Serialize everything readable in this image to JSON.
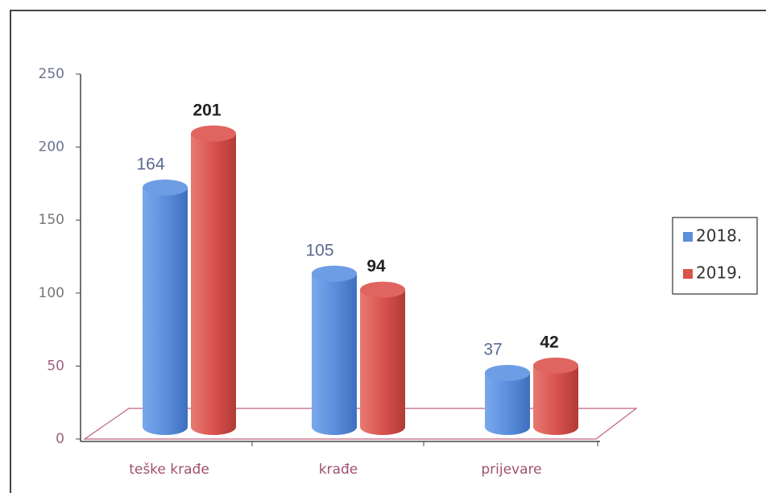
{
  "chart_data": {
    "type": "bar",
    "categories": [
      "teške krađe",
      "krađe",
      "prijevare"
    ],
    "series": [
      {
        "name": "2018.",
        "color": "#5b8fdc",
        "values": [
          164,
          105,
          37
        ]
      },
      {
        "name": "2019.",
        "color": "#d9534f",
        "values": [
          201,
          94,
          42
        ]
      }
    ],
    "ylim": [
      0,
      250
    ],
    "yticks": [
      0,
      50,
      100,
      150,
      200,
      250
    ],
    "legend": "right"
  }
}
